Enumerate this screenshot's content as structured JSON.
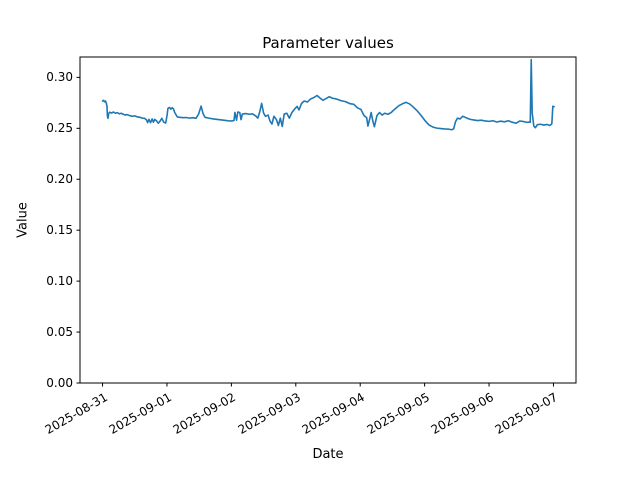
{
  "figure": {
    "background_color": "#ffffff",
    "text_color": "#000000"
  },
  "chart_data": {
    "type": "line",
    "title": "Parameter values",
    "xlabel": "Date",
    "ylabel": "Value",
    "line_color": "#1f77b4",
    "grid": false,
    "legend": "none",
    "xlim_days": [
      -0.35,
      7.35
    ],
    "ylim": [
      0,
      0.32
    ],
    "x_ticks": [
      {
        "day": 0,
        "label": "2025-08-31"
      },
      {
        "day": 1,
        "label": "2025-09-01"
      },
      {
        "day": 2,
        "label": "2025-09-02"
      },
      {
        "day": 3,
        "label": "2025-09-03"
      },
      {
        "day": 4,
        "label": "2025-09-04"
      },
      {
        "day": 5,
        "label": "2025-09-05"
      },
      {
        "day": 6,
        "label": "2025-09-06"
      },
      {
        "day": 7,
        "label": "2025-09-07"
      }
    ],
    "y_ticks": [
      {
        "value": 0.0,
        "label": "0.00"
      },
      {
        "value": 0.05,
        "label": "0.05"
      },
      {
        "value": 0.1,
        "label": "0.10"
      },
      {
        "value": 0.15,
        "label": "0.15"
      },
      {
        "value": 0.2,
        "label": "0.20"
      },
      {
        "value": 0.25,
        "label": "0.25"
      },
      {
        "value": 0.3,
        "label": "0.30"
      }
    ],
    "points": [
      [
        0.0,
        0.2768
      ],
      [
        0.015,
        0.2775
      ],
      [
        0.03,
        0.276
      ],
      [
        0.045,
        0.2768
      ],
      [
        0.06,
        0.2745
      ],
      [
        0.07,
        0.271
      ],
      [
        0.075,
        0.262
      ],
      [
        0.085,
        0.2598
      ],
      [
        0.095,
        0.2645
      ],
      [
        0.11,
        0.2658
      ],
      [
        0.14,
        0.265
      ],
      [
        0.17,
        0.266
      ],
      [
        0.2,
        0.2648
      ],
      [
        0.23,
        0.2654
      ],
      [
        0.26,
        0.2642
      ],
      [
        0.29,
        0.2648
      ],
      [
        0.32,
        0.2638
      ],
      [
        0.35,
        0.263
      ],
      [
        0.38,
        0.2635
      ],
      [
        0.42,
        0.2625
      ],
      [
        0.46,
        0.2618
      ],
      [
        0.5,
        0.2622
      ],
      [
        0.54,
        0.2612
      ],
      [
        0.58,
        0.2608
      ],
      [
        0.62,
        0.26
      ],
      [
        0.65,
        0.2598
      ],
      [
        0.68,
        0.2585
      ],
      [
        0.7,
        0.2556
      ],
      [
        0.72,
        0.2588
      ],
      [
        0.745,
        0.2555
      ],
      [
        0.77,
        0.2592
      ],
      [
        0.79,
        0.256
      ],
      [
        0.81,
        0.2588
      ],
      [
        0.84,
        0.2572
      ],
      [
        0.865,
        0.255
      ],
      [
        0.89,
        0.2568
      ],
      [
        0.92,
        0.2598
      ],
      [
        0.95,
        0.256
      ],
      [
        0.98,
        0.2552
      ],
      [
        1.0,
        0.262
      ],
      [
        1.015,
        0.2695
      ],
      [
        1.04,
        0.2705
      ],
      [
        1.06,
        0.2688
      ],
      [
        1.08,
        0.2702
      ],
      [
        1.1,
        0.2692
      ],
      [
        1.12,
        0.2655
      ],
      [
        1.16,
        0.2612
      ],
      [
        1.2,
        0.2608
      ],
      [
        1.25,
        0.2604
      ],
      [
        1.3,
        0.2606
      ],
      [
        1.35,
        0.26
      ],
      [
        1.4,
        0.2604
      ],
      [
        1.45,
        0.2598
      ],
      [
        1.49,
        0.2638
      ],
      [
        1.53,
        0.2718
      ],
      [
        1.56,
        0.2645
      ],
      [
        1.59,
        0.2608
      ],
      [
        1.65,
        0.26
      ],
      [
        1.72,
        0.2592
      ],
      [
        1.8,
        0.2586
      ],
      [
        1.88,
        0.258
      ],
      [
        1.95,
        0.2574
      ],
      [
        2.0,
        0.2572
      ],
      [
        2.04,
        0.2576
      ],
      [
        2.055,
        0.2656
      ],
      [
        2.08,
        0.258
      ],
      [
        2.1,
        0.266
      ],
      [
        2.13,
        0.2655
      ],
      [
        2.15,
        0.2585
      ],
      [
        2.17,
        0.264
      ],
      [
        2.22,
        0.2645
      ],
      [
        2.28,
        0.2638
      ],
      [
        2.33,
        0.2642
      ],
      [
        2.38,
        0.262
      ],
      [
        2.41,
        0.26
      ],
      [
        2.44,
        0.266
      ],
      [
        2.47,
        0.2745
      ],
      [
        2.5,
        0.265
      ],
      [
        2.53,
        0.2618
      ],
      [
        2.57,
        0.263
      ],
      [
        2.6,
        0.257
      ],
      [
        2.63,
        0.2542
      ],
      [
        2.66,
        0.2618
      ],
      [
        2.7,
        0.2585
      ],
      [
        2.73,
        0.2528
      ],
      [
        2.76,
        0.26
      ],
      [
        2.79,
        0.2518
      ],
      [
        2.82,
        0.264
      ],
      [
        2.86,
        0.2648
      ],
      [
        2.9,
        0.26
      ],
      [
        2.94,
        0.2655
      ],
      [
        2.98,
        0.2688
      ],
      [
        3.02,
        0.2715
      ],
      [
        3.05,
        0.268
      ],
      [
        3.09,
        0.2745
      ],
      [
        3.13,
        0.2768
      ],
      [
        3.18,
        0.2758
      ],
      [
        3.23,
        0.2788
      ],
      [
        3.28,
        0.2802
      ],
      [
        3.33,
        0.2822
      ],
      [
        3.38,
        0.2795
      ],
      [
        3.42,
        0.2775
      ],
      [
        3.47,
        0.2792
      ],
      [
        3.52,
        0.281
      ],
      [
        3.57,
        0.2795
      ],
      [
        3.63,
        0.2788
      ],
      [
        3.7,
        0.2772
      ],
      [
        3.77,
        0.2762
      ],
      [
        3.84,
        0.2742
      ],
      [
        3.9,
        0.2736
      ],
      [
        3.96,
        0.27
      ],
      [
        4.01,
        0.2686
      ],
      [
        4.06,
        0.2625
      ],
      [
        4.1,
        0.2605
      ],
      [
        4.12,
        0.2522
      ],
      [
        4.15,
        0.2598
      ],
      [
        4.17,
        0.2655
      ],
      [
        4.2,
        0.256
      ],
      [
        4.22,
        0.2516
      ],
      [
        4.26,
        0.2625
      ],
      [
        4.3,
        0.2655
      ],
      [
        4.34,
        0.263
      ],
      [
        4.38,
        0.2648
      ],
      [
        4.43,
        0.2638
      ],
      [
        4.48,
        0.2655
      ],
      [
        4.54,
        0.269
      ],
      [
        4.6,
        0.2722
      ],
      [
        4.66,
        0.2742
      ],
      [
        4.71,
        0.2755
      ],
      [
        4.77,
        0.2738
      ],
      [
        4.83,
        0.2705
      ],
      [
        4.89,
        0.2668
      ],
      [
        4.95,
        0.2622
      ],
      [
        5.01,
        0.2572
      ],
      [
        5.07,
        0.2532
      ],
      [
        5.13,
        0.2512
      ],
      [
        5.19,
        0.2502
      ],
      [
        5.25,
        0.2498
      ],
      [
        5.31,
        0.2494
      ],
      [
        5.37,
        0.2492
      ],
      [
        5.42,
        0.2486
      ],
      [
        5.45,
        0.2494
      ],
      [
        5.48,
        0.2565
      ],
      [
        5.51,
        0.26
      ],
      [
        5.55,
        0.2592
      ],
      [
        5.59,
        0.2618
      ],
      [
        5.63,
        0.2608
      ],
      [
        5.67,
        0.2596
      ],
      [
        5.71,
        0.2588
      ],
      [
        5.76,
        0.2582
      ],
      [
        5.82,
        0.2576
      ],
      [
        5.88,
        0.258
      ],
      [
        5.94,
        0.2572
      ],
      [
        6.0,
        0.2568
      ],
      [
        6.06,
        0.2574
      ],
      [
        6.12,
        0.2562
      ],
      [
        6.18,
        0.257
      ],
      [
        6.24,
        0.2564
      ],
      [
        6.3,
        0.2574
      ],
      [
        6.36,
        0.256
      ],
      [
        6.42,
        0.255
      ],
      [
        6.48,
        0.2572
      ],
      [
        6.54,
        0.2566
      ],
      [
        6.59,
        0.2558
      ],
      [
        6.62,
        0.2562
      ],
      [
        6.64,
        0.256
      ],
      [
        6.655,
        0.3175
      ],
      [
        6.67,
        0.265
      ],
      [
        6.695,
        0.2522
      ],
      [
        6.72,
        0.2506
      ],
      [
        6.75,
        0.2536
      ],
      [
        6.8,
        0.254
      ],
      [
        6.85,
        0.2532
      ],
      [
        6.9,
        0.2538
      ],
      [
        6.94,
        0.2528
      ],
      [
        6.965,
        0.2538
      ],
      [
        6.975,
        0.2545
      ],
      [
        6.99,
        0.2716
      ],
      [
        7.01,
        0.2712
      ]
    ]
  }
}
